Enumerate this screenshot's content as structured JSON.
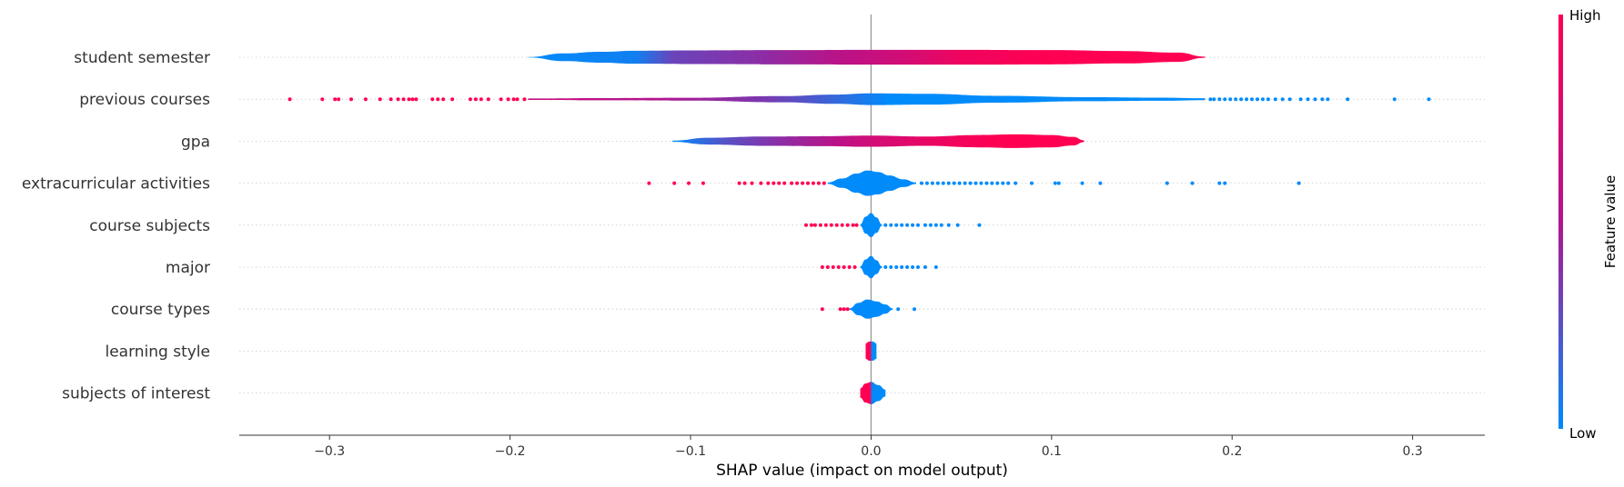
{
  "chart_data": {
    "type": "scatter",
    "subtype": "shap-violin-summary",
    "title": "",
    "xlabel": "SHAP value (impact on model output)",
    "ylabel": "",
    "xlim": [
      -0.35,
      0.34
    ],
    "xticks": [
      -0.3,
      -0.2,
      -0.1,
      0.0,
      0.1,
      0.2,
      0.3
    ],
    "xtick_labels": [
      "−0.3",
      "−0.2",
      "−0.1",
      "0.0",
      "0.1",
      "0.2",
      "0.3"
    ],
    "colorbar": {
      "label": "Feature value",
      "high_label": "High",
      "low_label": "Low",
      "low_color": "#008bfb",
      "high_color": "#ff0052"
    },
    "colors": {
      "low": "#008bfb",
      "high": "#ff0052",
      "mid": "#b0158f",
      "zero_line": "#999999",
      "grid": "#cccccc",
      "axis": "#333333"
    },
    "features": [
      {
        "name": "student semester",
        "violin": [
          [
            -0.19,
            0.012
          ],
          [
            -0.17,
            0.25
          ],
          [
            -0.15,
            0.35
          ],
          [
            -0.13,
            0.42
          ],
          [
            -0.1,
            0.44
          ],
          [
            -0.05,
            0.46
          ],
          [
            0.0,
            0.48
          ],
          [
            0.05,
            0.48
          ],
          [
            0.1,
            0.46
          ],
          [
            0.14,
            0.4
          ],
          [
            0.17,
            0.3
          ],
          [
            0.185,
            0.04
          ]
        ],
        "color_stops": [
          [
            -0.19,
            0.0
          ],
          [
            -0.13,
            0.05
          ],
          [
            -0.11,
            0.3
          ],
          [
            -0.06,
            0.4
          ],
          [
            -0.02,
            0.55
          ],
          [
            0.02,
            0.72
          ],
          [
            0.05,
            0.9
          ],
          [
            0.1,
            1.0
          ],
          [
            0.185,
            1.0
          ]
        ],
        "points": []
      },
      {
        "name": "previous courses",
        "violin": [
          [
            -0.19,
            0.05
          ],
          [
            -0.15,
            0.07
          ],
          [
            -0.1,
            0.09
          ],
          [
            -0.05,
            0.2
          ],
          [
            -0.02,
            0.3
          ],
          [
            0.0,
            0.38
          ],
          [
            0.03,
            0.35
          ],
          [
            0.07,
            0.22
          ],
          [
            0.12,
            0.13
          ],
          [
            0.16,
            0.1
          ],
          [
            0.185,
            0.06
          ]
        ],
        "color_stops": [
          [
            -0.19,
            0.65
          ],
          [
            -0.12,
            0.52
          ],
          [
            -0.06,
            0.35
          ],
          [
            -0.02,
            0.15
          ],
          [
            0.01,
            0.0
          ],
          [
            0.185,
            0.0
          ]
        ],
        "points": [
          {
            "x": -0.322,
            "c": 1
          },
          {
            "x": -0.304,
            "c": 1
          },
          {
            "x": -0.297,
            "c": 1
          },
          {
            "x": -0.295,
            "c": 1
          },
          {
            "x": -0.288,
            "c": 1
          },
          {
            "x": -0.28,
            "c": 1
          },
          {
            "x": -0.272,
            "c": 1
          },
          {
            "x": -0.266,
            "c": 1
          },
          {
            "x": -0.262,
            "c": 1
          },
          {
            "x": -0.259,
            "c": 1
          },
          {
            "x": -0.256,
            "c": 1
          },
          {
            "x": -0.254,
            "c": 1
          },
          {
            "x": -0.252,
            "c": 1
          },
          {
            "x": -0.243,
            "c": 1
          },
          {
            "x": -0.24,
            "c": 1
          },
          {
            "x": -0.237,
            "c": 1
          },
          {
            "x": -0.232,
            "c": 1
          },
          {
            "x": -0.222,
            "c": 1
          },
          {
            "x": -0.219,
            "c": 1
          },
          {
            "x": -0.216,
            "c": 1
          },
          {
            "x": -0.212,
            "c": 1
          },
          {
            "x": -0.205,
            "c": 1
          },
          {
            "x": -0.201,
            "c": 1
          },
          {
            "x": -0.198,
            "c": 1
          },
          {
            "x": -0.196,
            "c": 1
          },
          {
            "x": -0.192,
            "c": 1
          },
          {
            "x": 0.188,
            "c": 0
          },
          {
            "x": 0.19,
            "c": 0
          },
          {
            "x": 0.193,
            "c": 0
          },
          {
            "x": 0.196,
            "c": 0
          },
          {
            "x": 0.199,
            "c": 0
          },
          {
            "x": 0.202,
            "c": 0
          },
          {
            "x": 0.205,
            "c": 0
          },
          {
            "x": 0.208,
            "c": 0
          },
          {
            "x": 0.211,
            "c": 0
          },
          {
            "x": 0.214,
            "c": 0
          },
          {
            "x": 0.217,
            "c": 0
          },
          {
            "x": 0.22,
            "c": 0
          },
          {
            "x": 0.224,
            "c": 0
          },
          {
            "x": 0.228,
            "c": 0
          },
          {
            "x": 0.232,
            "c": 0
          },
          {
            "x": 0.238,
            "c": 0
          },
          {
            "x": 0.242,
            "c": 0
          },
          {
            "x": 0.246,
            "c": 0
          },
          {
            "x": 0.25,
            "c": 0
          },
          {
            "x": 0.253,
            "c": 0
          },
          {
            "x": 0.264,
            "c": 0
          },
          {
            "x": 0.29,
            "c": 0
          },
          {
            "x": 0.309,
            "c": 0
          }
        ]
      },
      {
        "name": "gpa",
        "violin": [
          [
            -0.11,
            0.04
          ],
          [
            -0.09,
            0.22
          ],
          [
            -0.06,
            0.3
          ],
          [
            -0.03,
            0.32
          ],
          [
            0.0,
            0.36
          ],
          [
            0.03,
            0.3
          ],
          [
            0.06,
            0.4
          ],
          [
            0.08,
            0.44
          ],
          [
            0.1,
            0.4
          ],
          [
            0.112,
            0.28
          ],
          [
            0.118,
            0.06
          ]
        ],
        "color_stops": [
          [
            -0.11,
            0.0
          ],
          [
            -0.08,
            0.25
          ],
          [
            -0.05,
            0.4
          ],
          [
            -0.02,
            0.55
          ],
          [
            0.0,
            0.7
          ],
          [
            0.03,
            0.85
          ],
          [
            0.07,
            1.0
          ],
          [
            0.118,
            1.0
          ]
        ],
        "points": []
      },
      {
        "name": "extracurricular activities",
        "violin": [
          [
            -0.024,
            0.05
          ],
          [
            -0.016,
            0.3
          ],
          [
            -0.008,
            0.62
          ],
          [
            -0.002,
            0.82
          ],
          [
            0.004,
            0.72
          ],
          [
            0.01,
            0.5
          ],
          [
            0.018,
            0.25
          ],
          [
            0.025,
            0.05
          ]
        ],
        "color_stops": [
          [
            -0.024,
            0.0
          ],
          [
            0.025,
            0.0
          ]
        ],
        "points": [
          {
            "x": -0.123,
            "c": 1
          },
          {
            "x": -0.109,
            "c": 1
          },
          {
            "x": -0.101,
            "c": 1
          },
          {
            "x": -0.093,
            "c": 1
          },
          {
            "x": -0.073,
            "c": 1
          },
          {
            "x": -0.07,
            "c": 1
          },
          {
            "x": -0.066,
            "c": 1
          },
          {
            "x": -0.061,
            "c": 1
          },
          {
            "x": -0.057,
            "c": 1
          },
          {
            "x": -0.054,
            "c": 1
          },
          {
            "x": -0.051,
            "c": 1
          },
          {
            "x": -0.048,
            "c": 1
          },
          {
            "x": -0.044,
            "c": 1
          },
          {
            "x": -0.041,
            "c": 1
          },
          {
            "x": -0.038,
            "c": 1
          },
          {
            "x": -0.035,
            "c": 1
          },
          {
            "x": -0.032,
            "c": 1
          },
          {
            "x": -0.029,
            "c": 1
          },
          {
            "x": -0.026,
            "c": 1
          },
          {
            "x": 0.028,
            "c": 0
          },
          {
            "x": 0.031,
            "c": 0
          },
          {
            "x": 0.034,
            "c": 0
          },
          {
            "x": 0.037,
            "c": 0
          },
          {
            "x": 0.04,
            "c": 0
          },
          {
            "x": 0.043,
            "c": 0
          },
          {
            "x": 0.046,
            "c": 0
          },
          {
            "x": 0.049,
            "c": 0
          },
          {
            "x": 0.052,
            "c": 0
          },
          {
            "x": 0.055,
            "c": 0
          },
          {
            "x": 0.058,
            "c": 0
          },
          {
            "x": 0.061,
            "c": 0
          },
          {
            "x": 0.064,
            "c": 0
          },
          {
            "x": 0.067,
            "c": 0
          },
          {
            "x": 0.07,
            "c": 0
          },
          {
            "x": 0.073,
            "c": 0
          },
          {
            "x": 0.076,
            "c": 0
          },
          {
            "x": 0.08,
            "c": 0
          },
          {
            "x": 0.089,
            "c": 0
          },
          {
            "x": 0.102,
            "c": 0
          },
          {
            "x": 0.104,
            "c": 0
          },
          {
            "x": 0.117,
            "c": 0
          },
          {
            "x": 0.127,
            "c": 0
          },
          {
            "x": 0.164,
            "c": 0
          },
          {
            "x": 0.178,
            "c": 0
          },
          {
            "x": 0.193,
            "c": 0
          },
          {
            "x": 0.196,
            "c": 0
          },
          {
            "x": 0.237,
            "c": 0
          }
        ]
      },
      {
        "name": "course subjects",
        "violin": [
          [
            -0.006,
            0.05
          ],
          [
            -0.003,
            0.55
          ],
          [
            0.0,
            0.78
          ],
          [
            0.003,
            0.5
          ],
          [
            0.006,
            0.05
          ]
        ],
        "color_stops": [
          [
            -0.006,
            0.0
          ],
          [
            0.006,
            0.0
          ]
        ],
        "points": [
          {
            "x": -0.036,
            "c": 1
          },
          {
            "x": -0.033,
            "c": 1
          },
          {
            "x": -0.031,
            "c": 1
          },
          {
            "x": -0.028,
            "c": 1
          },
          {
            "x": -0.025,
            "c": 1
          },
          {
            "x": -0.022,
            "c": 1
          },
          {
            "x": -0.019,
            "c": 1
          },
          {
            "x": -0.016,
            "c": 1
          },
          {
            "x": -0.013,
            "c": 1
          },
          {
            "x": -0.01,
            "c": 1
          },
          {
            "x": -0.008,
            "c": 1
          },
          {
            "x": 0.008,
            "c": 0
          },
          {
            "x": 0.011,
            "c": 0
          },
          {
            "x": 0.014,
            "c": 0
          },
          {
            "x": 0.017,
            "c": 0
          },
          {
            "x": 0.02,
            "c": 0
          },
          {
            "x": 0.023,
            "c": 0
          },
          {
            "x": 0.026,
            "c": 0
          },
          {
            "x": 0.03,
            "c": 0
          },
          {
            "x": 0.033,
            "c": 0
          },
          {
            "x": 0.036,
            "c": 0
          },
          {
            "x": 0.039,
            "c": 0
          },
          {
            "x": 0.043,
            "c": 0
          },
          {
            "x": 0.048,
            "c": 0
          },
          {
            "x": 0.06,
            "c": 0
          }
        ]
      },
      {
        "name": "major",
        "violin": [
          [
            -0.006,
            0.05
          ],
          [
            -0.003,
            0.5
          ],
          [
            0.0,
            0.72
          ],
          [
            0.003,
            0.45
          ],
          [
            0.006,
            0.05
          ]
        ],
        "color_stops": [
          [
            -0.006,
            0.0
          ],
          [
            0.006,
            0.0
          ]
        ],
        "points": [
          {
            "x": -0.027,
            "c": 1
          },
          {
            "x": -0.024,
            "c": 1
          },
          {
            "x": -0.021,
            "c": 1
          },
          {
            "x": -0.018,
            "c": 1
          },
          {
            "x": -0.015,
            "c": 1
          },
          {
            "x": -0.012,
            "c": 1
          },
          {
            "x": -0.009,
            "c": 1
          },
          {
            "x": 0.008,
            "c": 0
          },
          {
            "x": 0.011,
            "c": 0
          },
          {
            "x": 0.014,
            "c": 0
          },
          {
            "x": 0.017,
            "c": 0
          },
          {
            "x": 0.02,
            "c": 0
          },
          {
            "x": 0.023,
            "c": 0
          },
          {
            "x": 0.026,
            "c": 0
          },
          {
            "x": 0.03,
            "c": 0
          },
          {
            "x": 0.036,
            "c": 0
          }
        ]
      },
      {
        "name": "course types",
        "violin": [
          [
            -0.012,
            0.05
          ],
          [
            -0.007,
            0.4
          ],
          [
            -0.002,
            0.62
          ],
          [
            0.003,
            0.5
          ],
          [
            0.008,
            0.3
          ],
          [
            0.012,
            0.05
          ]
        ],
        "color_stops": [
          [
            -0.012,
            0.0
          ],
          [
            0.012,
            0.0
          ]
        ],
        "points": [
          {
            "x": -0.027,
            "c": 1
          },
          {
            "x": -0.017,
            "c": 1
          },
          {
            "x": -0.015,
            "c": 1
          },
          {
            "x": -0.013,
            "c": 1
          },
          {
            "x": 0.015,
            "c": 0
          },
          {
            "x": 0.024,
            "c": 0
          }
        ]
      },
      {
        "name": "learning style",
        "violin": [
          [
            -0.003,
            0.5
          ],
          [
            -0.001,
            0.62
          ],
          [
            0.001,
            0.62
          ],
          [
            0.003,
            0.5
          ]
        ],
        "color_stops": [
          [
            -0.003,
            1.0
          ],
          [
            -0.0005,
            1.0
          ],
          [
            0.0005,
            0.0
          ],
          [
            0.003,
            0.0
          ]
        ],
        "points": []
      },
      {
        "name": "subjects of interest",
        "violin": [
          [
            -0.006,
            0.3
          ],
          [
            -0.003,
            0.62
          ],
          [
            0.0,
            0.72
          ],
          [
            0.004,
            0.52
          ],
          [
            0.008,
            0.22
          ]
        ],
        "color_stops": [
          [
            -0.006,
            1.0
          ],
          [
            -0.001,
            1.0
          ],
          [
            0.001,
            0.0
          ],
          [
            0.008,
            0.0
          ]
        ],
        "points": []
      }
    ]
  }
}
